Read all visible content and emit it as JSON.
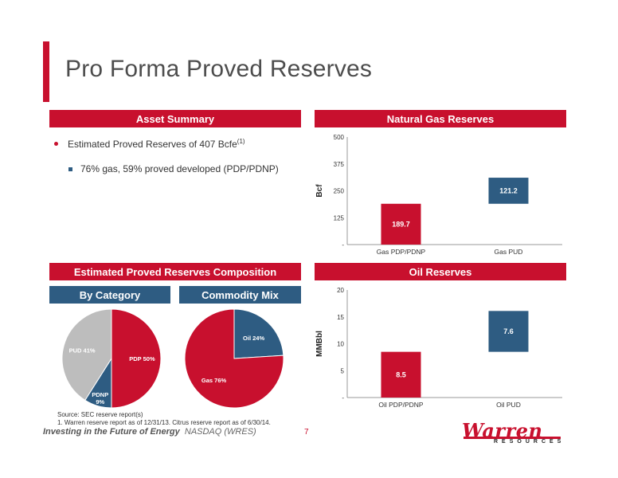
{
  "title": "Pro Forma Proved Reserves",
  "asset_summary": {
    "header": "Asset Summary",
    "bullet1": "Estimated Proved Reserves of 407 Bcfe",
    "bullet1_sup": "(1)",
    "bullet2": "76% gas, 59% proved developed (PDP/PDNP)"
  },
  "composition": {
    "header": "Estimated Proved Reserves Composition",
    "by_category": "By Category",
    "commodity_mix": "Commodity Mix"
  },
  "colors": {
    "red": "#c8102e",
    "blue": "#2e5c82",
    "gray": "#bdbdbd"
  },
  "chart_data": [
    {
      "type": "bar",
      "title": "Natural Gas Reserves",
      "ylabel": "Bcf",
      "ylim": [
        0,
        500
      ],
      "yticks": [
        "-",
        "125",
        "250",
        "375",
        "500"
      ],
      "categories": [
        "Gas PDP/PDNP",
        "Gas PUD"
      ],
      "series": [
        {
          "values": [
            189.7,
            121.2
          ],
          "bases": [
            0,
            189.7
          ],
          "labels": [
            "189.7",
            "121.2"
          ]
        }
      ]
    },
    {
      "type": "bar",
      "title": "Oil Reserves",
      "ylabel": "MMBbl",
      "ylim": [
        0,
        20
      ],
      "yticks": [
        "-",
        "5",
        "10",
        "15",
        "20"
      ],
      "categories": [
        "Oil PDP/PDNP",
        "Oil PUD"
      ],
      "series": [
        {
          "values": [
            8.5,
            7.6
          ],
          "bases": [
            0,
            8.5
          ],
          "labels": [
            "8.5",
            "7.6"
          ]
        }
      ]
    },
    {
      "type": "pie",
      "title": "By Category",
      "slices": [
        {
          "label": "PDP 50%",
          "value": 50
        },
        {
          "label": "PDNP 9%",
          "value": 9
        },
        {
          "label": "PUD 41%",
          "value": 41
        }
      ]
    },
    {
      "type": "pie",
      "title": "Commodity Mix",
      "slices": [
        {
          "label": "Oil 24%",
          "value": 24
        },
        {
          "label": "Gas 76%",
          "value": 76
        }
      ]
    }
  ],
  "footer": {
    "source": "Source: SEC reserve report(s)",
    "note": "1. Warren reserve report as of 12/31/13. Citrus reserve report as of 6/30/14.",
    "tagline": "Investing in the Future of Energy",
    "ticker": "NASDAQ (WRES)",
    "page": "7",
    "logo_main": "Warren",
    "logo_sub": "RESOURCES"
  }
}
